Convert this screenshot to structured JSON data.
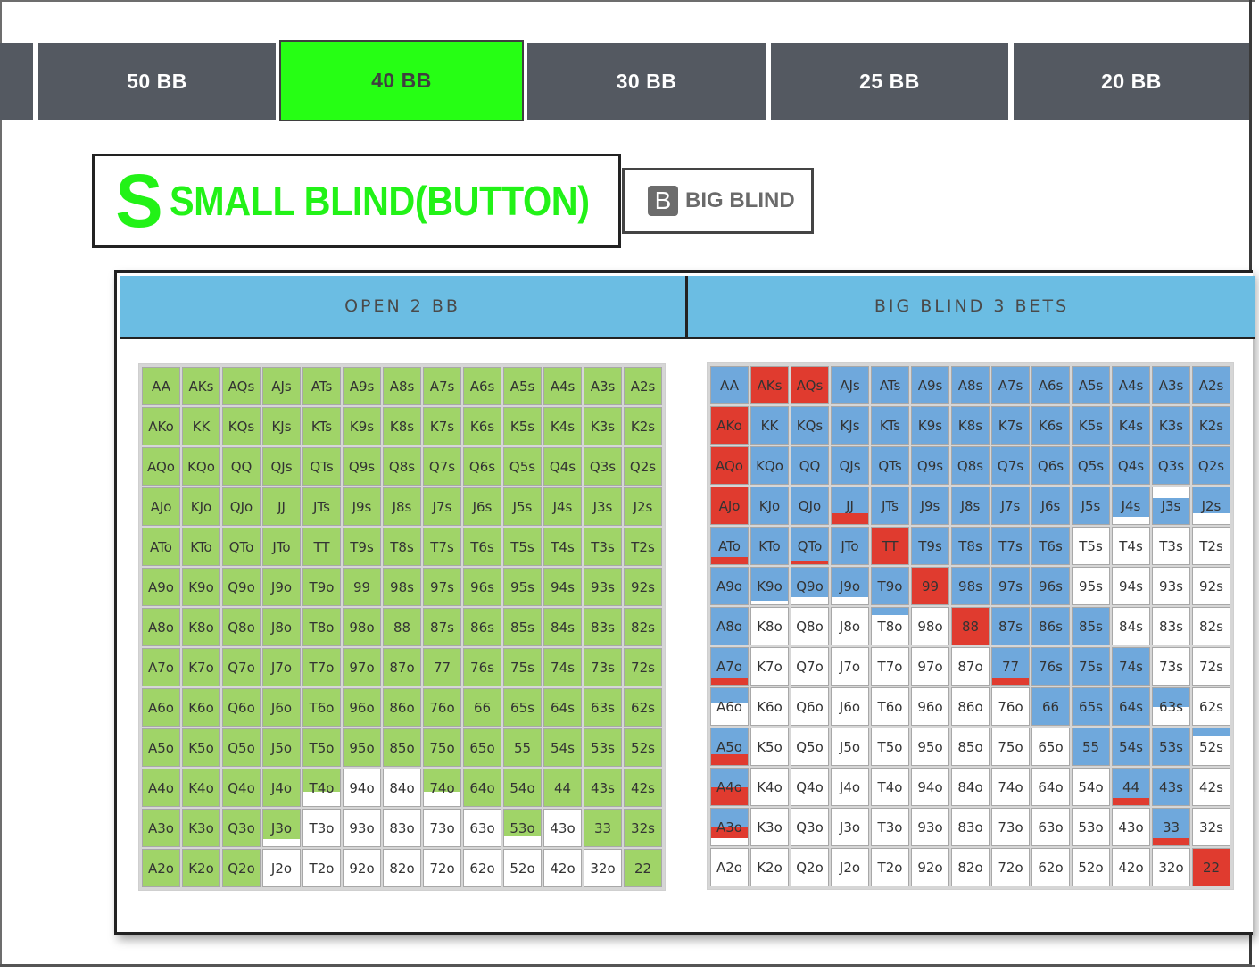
{
  "stack_tabs": [
    {
      "label": ""
    },
    {
      "label": "50 BB"
    },
    {
      "label": "40 BB",
      "active": true
    },
    {
      "label": "30 BB"
    },
    {
      "label": "25 BB"
    },
    {
      "label": "20 BB"
    }
  ],
  "positions": {
    "small_blind": {
      "letter": "S",
      "label": "SMALL BLIND(BUTTON)"
    },
    "big_blind": {
      "letter": "B",
      "label": "BIG BLIND"
    }
  },
  "sections": {
    "open_header": "OPEN 2 BB",
    "threebet_header": "BIG BLIND 3 BETS"
  },
  "colors": {
    "active_tab": "#26ff14",
    "tab_bg": "#545961",
    "open": "#a0d468",
    "call": "#6fa8dc",
    "threebet": "#e03b2f",
    "fold": "#ffffff",
    "header": "#6bbde3"
  },
  "hands": [
    [
      "AA",
      "AKs",
      "AQs",
      "AJs",
      "ATs",
      "A9s",
      "A8s",
      "A7s",
      "A6s",
      "A5s",
      "A4s",
      "A3s",
      "A2s"
    ],
    [
      "AKo",
      "KK",
      "KQs",
      "KJs",
      "KTs",
      "K9s",
      "K8s",
      "K7s",
      "K6s",
      "K5s",
      "K4s",
      "K3s",
      "K2s"
    ],
    [
      "AQo",
      "KQo",
      "QQ",
      "QJs",
      "QTs",
      "Q9s",
      "Q8s",
      "Q7s",
      "Q6s",
      "Q5s",
      "Q4s",
      "Q3s",
      "Q2s"
    ],
    [
      "AJo",
      "KJo",
      "QJo",
      "JJ",
      "JTs",
      "J9s",
      "J8s",
      "J7s",
      "J6s",
      "J5s",
      "J4s",
      "J3s",
      "J2s"
    ],
    [
      "ATo",
      "KTo",
      "QTo",
      "JTo",
      "TT",
      "T9s",
      "T8s",
      "T7s",
      "T6s",
      "T5s",
      "T4s",
      "T3s",
      "T2s"
    ],
    [
      "A9o",
      "K9o",
      "Q9o",
      "J9o",
      "T9o",
      "99",
      "98s",
      "97s",
      "96s",
      "95s",
      "94s",
      "93s",
      "92s"
    ],
    [
      "A8o",
      "K8o",
      "Q8o",
      "J8o",
      "T8o",
      "98o",
      "88",
      "87s",
      "86s",
      "85s",
      "84s",
      "83s",
      "82s"
    ],
    [
      "A7o",
      "K7o",
      "Q7o",
      "J7o",
      "T7o",
      "97o",
      "87o",
      "77",
      "76s",
      "75s",
      "74s",
      "73s",
      "72s"
    ],
    [
      "A6o",
      "K6o",
      "Q6o",
      "J6o",
      "T6o",
      "96o",
      "86o",
      "76o",
      "66",
      "65s",
      "64s",
      "63s",
      "62s"
    ],
    [
      "A5o",
      "K5o",
      "Q5o",
      "J5o",
      "T5o",
      "95o",
      "85o",
      "75o",
      "65o",
      "55",
      "54s",
      "53s",
      "52s"
    ],
    [
      "A4o",
      "K4o",
      "Q4o",
      "J4o",
      "T4o",
      "94o",
      "84o",
      "74o",
      "64o",
      "54o",
      "44",
      "43s",
      "42s"
    ],
    [
      "A3o",
      "K3o",
      "Q3o",
      "J3o",
      "T3o",
      "93o",
      "83o",
      "73o",
      "63o",
      "53o",
      "43o",
      "33",
      "32s"
    ],
    [
      "A2o",
      "K2o",
      "Q2o",
      "J2o",
      "T2o",
      "92o",
      "82o",
      "72o",
      "62o",
      "52o",
      "42o",
      "32o",
      "22"
    ]
  ],
  "open_range": [
    [
      "O",
      "O",
      "O",
      "O",
      "O",
      "O",
      "O",
      "O",
      "O",
      "O",
      "O",
      "O",
      "O"
    ],
    [
      "O",
      "O",
      "O",
      "O",
      "O",
      "O",
      "O",
      "O",
      "O",
      "O",
      "O",
      "O",
      "O"
    ],
    [
      "O",
      "O",
      "O",
      "O",
      "O",
      "O",
      "O",
      "O",
      "O",
      "O",
      "O",
      "O",
      "O"
    ],
    [
      "O",
      "O",
      "O",
      "O",
      "O",
      "O",
      "O",
      "O",
      "O",
      "O",
      "O",
      "O",
      "O"
    ],
    [
      "O",
      "O",
      "O",
      "O",
      "O",
      "O",
      "O",
      "O",
      "O",
      "O",
      "O",
      "O",
      "O"
    ],
    [
      "O",
      "O",
      "O",
      "O",
      "O",
      "O",
      "O",
      "O",
      "O",
      "O",
      "O",
      "O",
      "O"
    ],
    [
      "O",
      "O",
      "O",
      "O",
      "O",
      "O",
      "O",
      "O",
      "O",
      "O",
      "O",
      "O",
      "O"
    ],
    [
      "O",
      "O",
      "O",
      "O",
      "O",
      "O",
      "O",
      "O",
      "O",
      "O",
      "O",
      "O",
      "O"
    ],
    [
      "O",
      "O",
      "O",
      "O",
      "O",
      "O",
      "O",
      "O",
      "O",
      "O",
      "O",
      "O",
      "O"
    ],
    [
      "O",
      "O",
      "O",
      "O",
      "O",
      "O",
      "O",
      "O",
      "O",
      "O",
      "O",
      "O",
      "O"
    ],
    [
      "O",
      "O",
      "O",
      "O",
      "O60",
      "F",
      "F",
      "O60",
      "O",
      "O",
      "O",
      "O",
      "O"
    ],
    [
      "O",
      "O",
      "O",
      "O80",
      "F",
      "F",
      "F",
      "F",
      "F",
      "O70",
      "F",
      "O",
      "O"
    ],
    [
      "O",
      "O",
      "O",
      "F",
      "F",
      "F",
      "F",
      "F",
      "F",
      "F",
      "F",
      "F",
      "O"
    ]
  ],
  "threebet_range": [
    [
      "C",
      "R",
      "R",
      "C",
      "C",
      "C",
      "C",
      "C",
      "C",
      "C",
      "C",
      "C",
      "C"
    ],
    [
      "R",
      "C",
      "C",
      "C",
      "C",
      "C",
      "C",
      "C",
      "C",
      "C",
      "C",
      "C",
      "C"
    ],
    [
      "R",
      "C",
      "C",
      "C",
      "C",
      "C",
      "C",
      "C",
      "C",
      "C",
      "C",
      "C",
      "C"
    ],
    [
      "R",
      "C",
      "C",
      "C70R30",
      "C",
      "C",
      "C",
      "C",
      "C",
      "C",
      "C80",
      "F30",
      "C70"
    ],
    [
      "C80R20",
      "C",
      "C90R10",
      "C",
      "R",
      "C",
      "C",
      "C",
      "C",
      "F",
      "F",
      "F",
      "F"
    ],
    [
      "C",
      "C90",
      "C80",
      "C80",
      "C",
      "R",
      "C",
      "C",
      "C",
      "F",
      "F",
      "F",
      "F"
    ],
    [
      "C",
      "F",
      "F",
      "F",
      "C20",
      "F",
      "R",
      "C",
      "C",
      "C",
      "F",
      "F",
      "F"
    ],
    [
      "C80R20",
      "F",
      "F",
      "F",
      "F",
      "F",
      "F",
      "C80R20",
      "C",
      "C",
      "C",
      "F",
      "F"
    ],
    [
      "C40",
      "F",
      "F",
      "F",
      "F",
      "F",
      "F",
      "F",
      "C",
      "C",
      "C",
      "C50",
      "F"
    ],
    [
      "C70R30",
      "F",
      "F",
      "F",
      "F",
      "F",
      "F",
      "F",
      "F",
      "C",
      "C",
      "C",
      "C20"
    ],
    [
      "C50R50",
      "F",
      "F",
      "F",
      "F",
      "F",
      "F",
      "F",
      "F",
      "F",
      "C80R20",
      "C",
      "F"
    ],
    [
      "C50R30",
      "F",
      "F",
      "F",
      "F",
      "F",
      "F",
      "F",
      "F",
      "F",
      "F",
      "C80R20",
      "F"
    ],
    [
      "F",
      "F",
      "F",
      "F",
      "F",
      "F",
      "F",
      "F",
      "F",
      "F",
      "F",
      "F",
      "R"
    ]
  ]
}
